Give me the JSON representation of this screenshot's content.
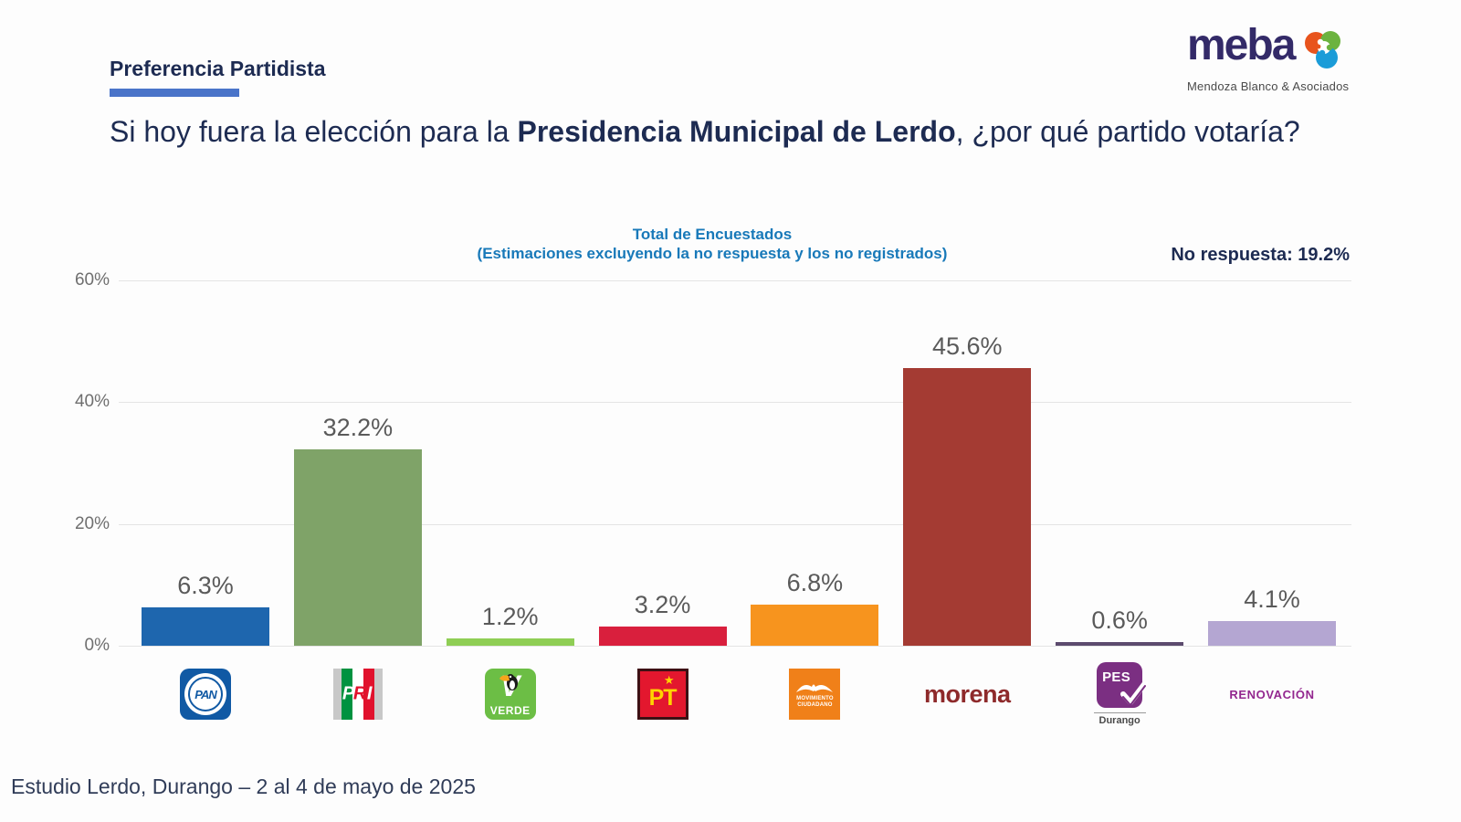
{
  "header": {
    "section_label": "Preferencia Partidista",
    "question_prefix": "Si hoy fuera la elección para la ",
    "question_bold": "Presidencia Municipal de Lerdo",
    "question_suffix": ", ¿por qué partido votaría?",
    "accent_color": "#4A74C9"
  },
  "brand": {
    "name": "meba",
    "tagline": "Mendoza Blanco & Asociados",
    "color": "#332A68"
  },
  "chart_data": {
    "type": "bar",
    "title": "Total de Encuestados",
    "subtitle": "(Estimaciones excluyendo la no respuesta y los no registrados)",
    "note": "No respuesta: 19.2%",
    "ylim": [
      0,
      60
    ],
    "yticks": [
      0,
      20,
      40,
      60
    ],
    "ytick_labels": [
      "0%",
      "20%",
      "40%",
      "60%"
    ],
    "grid": true,
    "legend": false,
    "categories": [
      "PAN",
      "PRI",
      "Partido Verde",
      "PT",
      "Movimiento Ciudadano",
      "Morena",
      "PES Durango",
      "Renovación"
    ],
    "values": [
      6.3,
      32.2,
      1.2,
      3.2,
      6.8,
      45.6,
      0.6,
      4.1
    ],
    "value_labels": [
      "6.3%",
      "32.2%",
      "1.2%",
      "3.2%",
      "6.8%",
      "45.6%",
      "0.6%",
      "4.1%"
    ],
    "bar_colors": [
      "#1E66AE",
      "#7FA368",
      "#8FCE55",
      "#D91F3D",
      "#F7941E",
      "#A43B33",
      "#5C4B6E",
      "#B4A6D2"
    ]
  },
  "logos": {
    "pan": {
      "text": "PAN"
    },
    "pri": {
      "letters": [
        "P",
        "R",
        "I"
      ]
    },
    "verde": {
      "v": "V",
      "text": "VERDE"
    },
    "pt": {
      "text": "PT",
      "star": "★"
    },
    "mc": {
      "line1": "MOVIMIENTO",
      "line2": "CIUDADANO"
    },
    "morena": {
      "text": "morena"
    },
    "pes": {
      "text": "PES",
      "sub": "Durango"
    },
    "renovacion": {
      "text": "RENOVACIÓN"
    }
  },
  "footer": {
    "text": "Estudio Lerdo, Durango – 2 al 4 de mayo de 2025"
  }
}
